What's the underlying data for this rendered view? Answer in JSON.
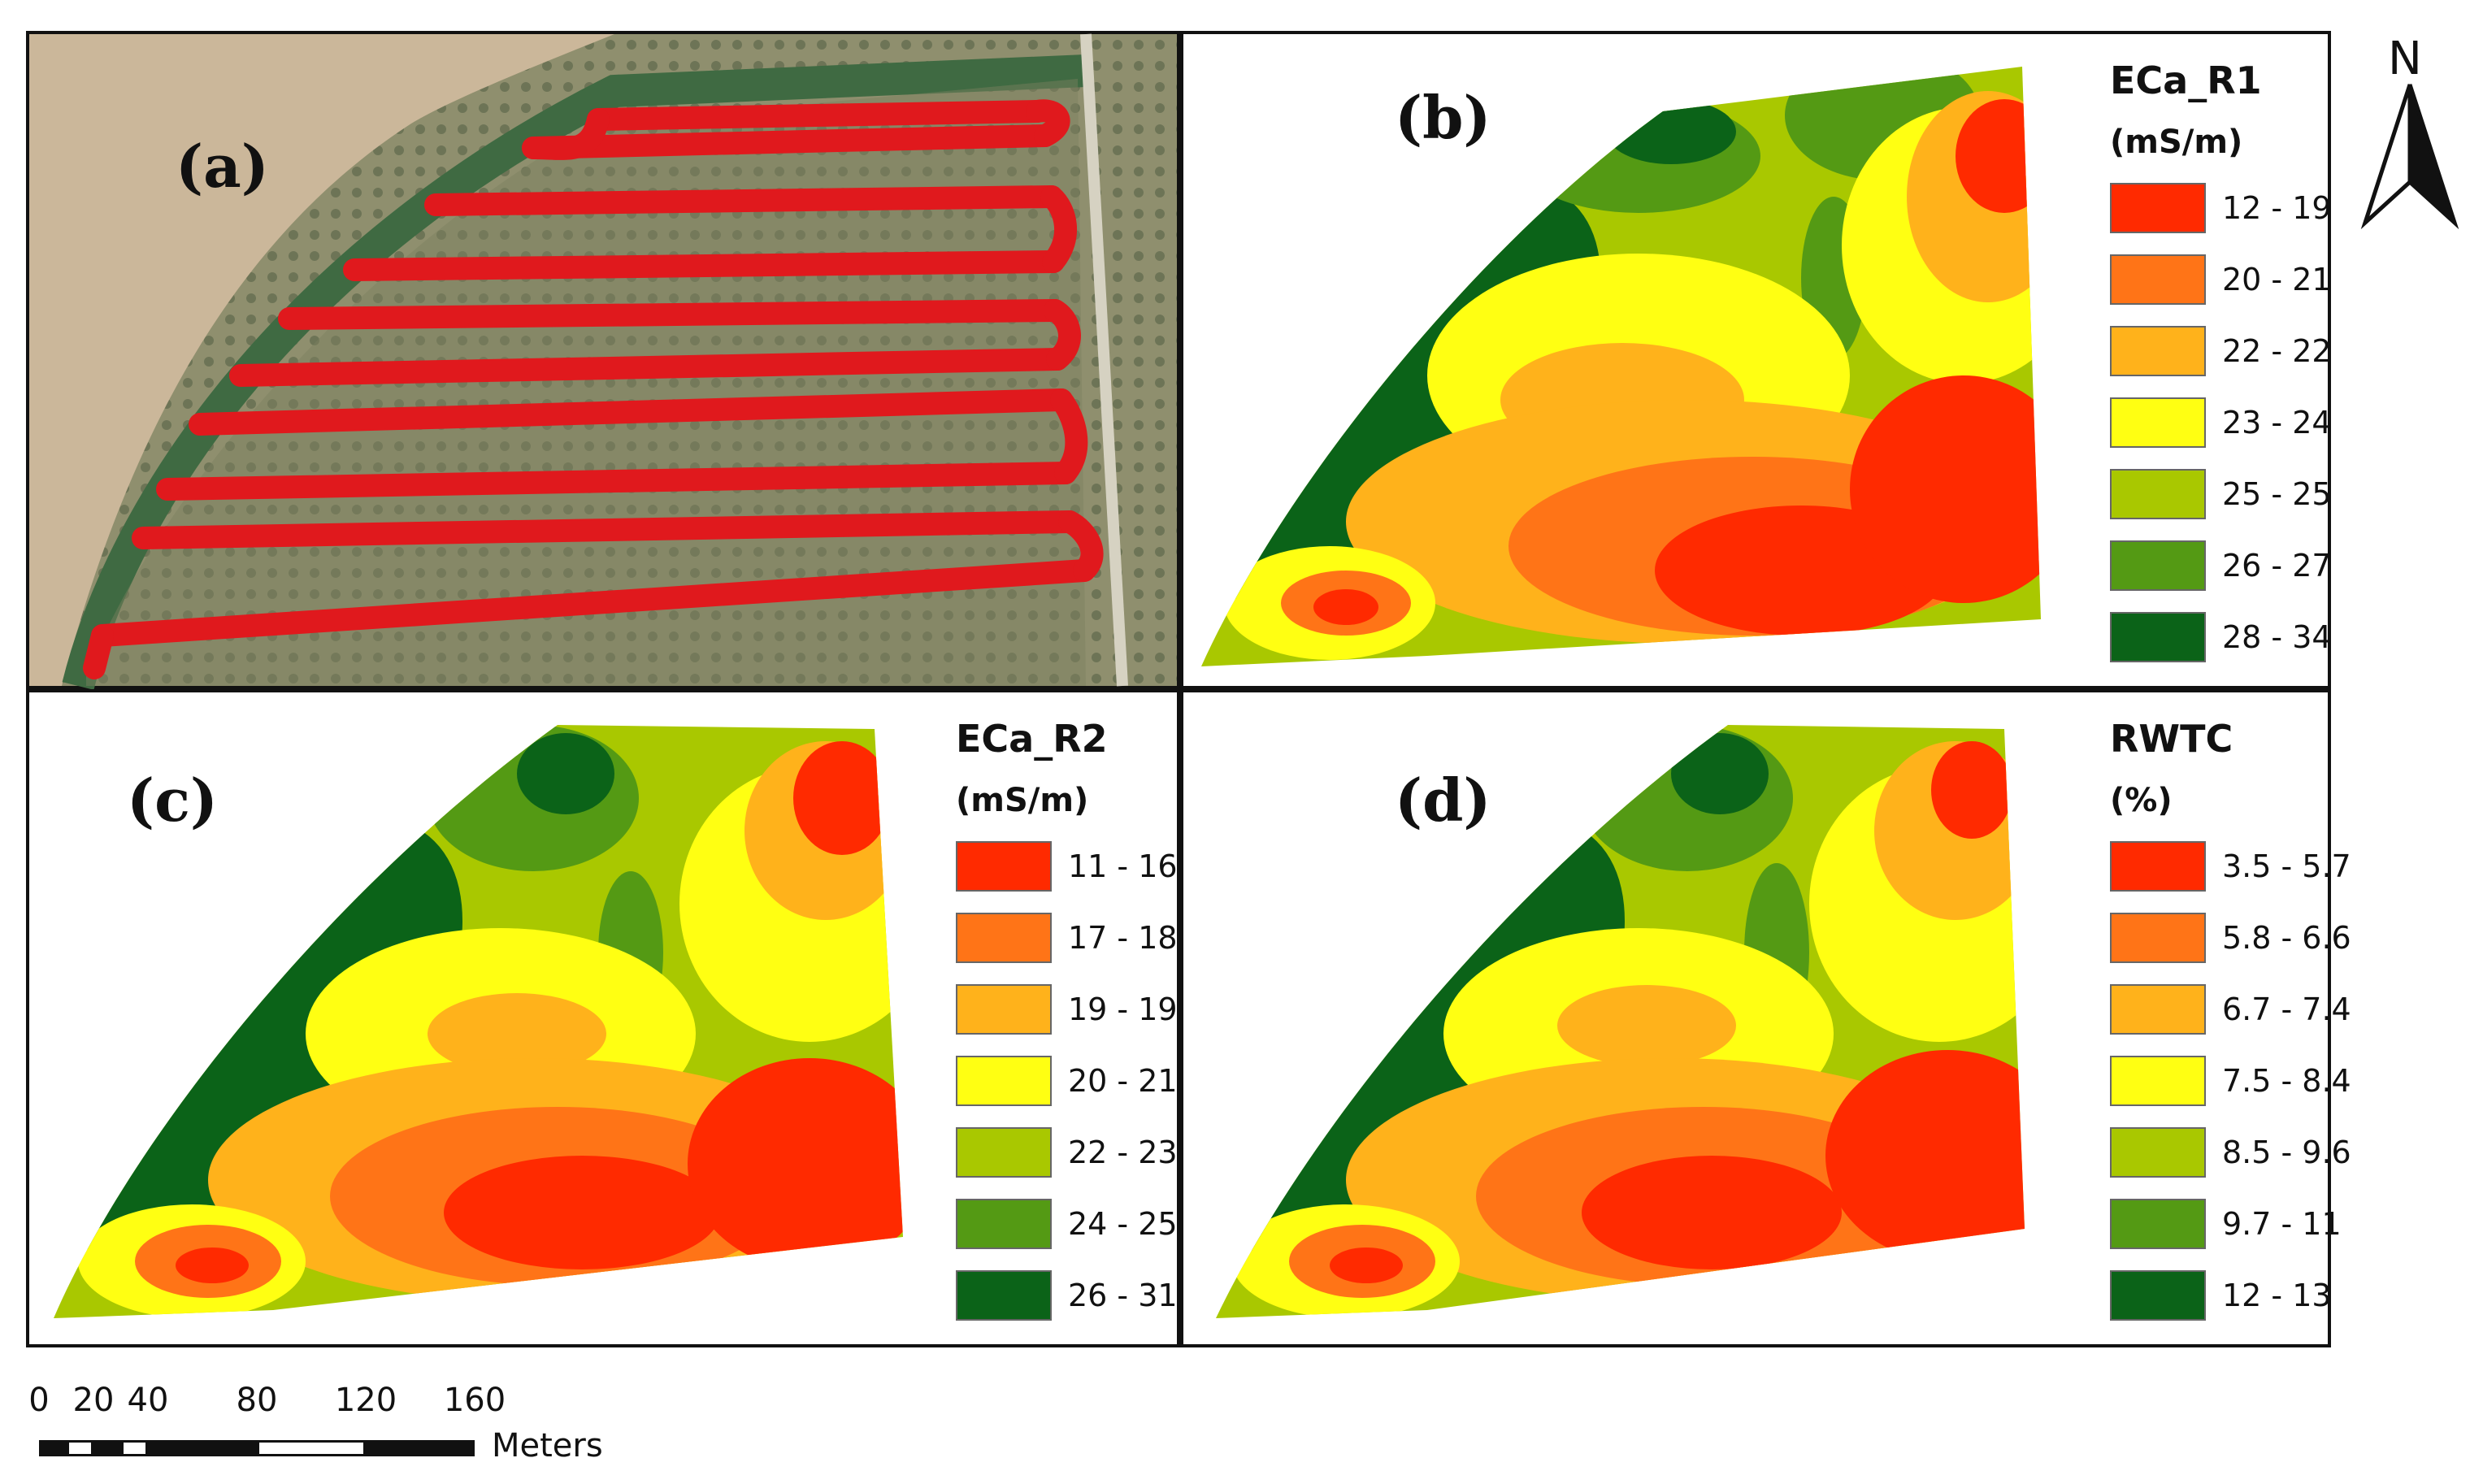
{
  "colors": {
    "red": "#ff2a00",
    "orange": "#ff7417",
    "light_orange": "#ffb21b",
    "yellow": "#ffff12",
    "yellow_green": "#a9c800",
    "green": "#549a14",
    "dark_green": "#0b6318",
    "track": "#e0191d"
  },
  "north_arrow": {
    "label": "N"
  },
  "scale_bar": {
    "ticks": [
      "0",
      "20",
      "40",
      "80",
      "120",
      "160"
    ],
    "tick_values": [
      0,
      20,
      40,
      80,
      120,
      160
    ],
    "units": "Meters"
  },
  "panels": [
    {
      "id": "a",
      "letter": "(a)",
      "content": "satellite image with red sampling track"
    },
    {
      "id": "b",
      "letter": "(b)",
      "legend": {
        "title": "ECa_R1",
        "unit": "(mS/m)",
        "classes": [
          {
            "label": "12 - 19",
            "color": "#ff2a00"
          },
          {
            "label": "20 - 21",
            "color": "#ff7417"
          },
          {
            "label": "22 - 22",
            "color": "#ffb21b"
          },
          {
            "label": "23 - 24",
            "color": "#ffff12"
          },
          {
            "label": "25 - 25",
            "color": "#a9c800"
          },
          {
            "label": "26 - 27",
            "color": "#549a14"
          },
          {
            "label": "28 - 34",
            "color": "#0b6318"
          }
        ]
      }
    },
    {
      "id": "c",
      "letter": "(c)",
      "legend": {
        "title": "ECa_R2",
        "unit": "(mS/m)",
        "classes": [
          {
            "label": "11 - 16",
            "color": "#ff2a00"
          },
          {
            "label": "17 - 18",
            "color": "#ff7417"
          },
          {
            "label": "19 - 19",
            "color": "#ffb21b"
          },
          {
            "label": "20 - 21",
            "color": "#ffff12"
          },
          {
            "label": "22 - 23",
            "color": "#a9c800"
          },
          {
            "label": "24 - 25",
            "color": "#549a14"
          },
          {
            "label": "26 - 31",
            "color": "#0b6318"
          }
        ]
      }
    },
    {
      "id": "d",
      "letter": "(d)",
      "legend": {
        "title": "RWTC",
        "unit": "(%)",
        "classes": [
          {
            "label": "3.5 - 5.7",
            "color": "#ff2a00"
          },
          {
            "label": "5.8 - 6.6",
            "color": "#ff7417"
          },
          {
            "label": "6.7 - 7.4",
            "color": "#ffb21b"
          },
          {
            "label": "7.5 - 8.4",
            "color": "#ffff12"
          },
          {
            "label": "8.5 - 9.6",
            "color": "#a9c800"
          },
          {
            "label": "9.7 - 11",
            "color": "#549a14"
          },
          {
            "label": "12 - 13",
            "color": "#0b6318"
          }
        ]
      }
    }
  ]
}
